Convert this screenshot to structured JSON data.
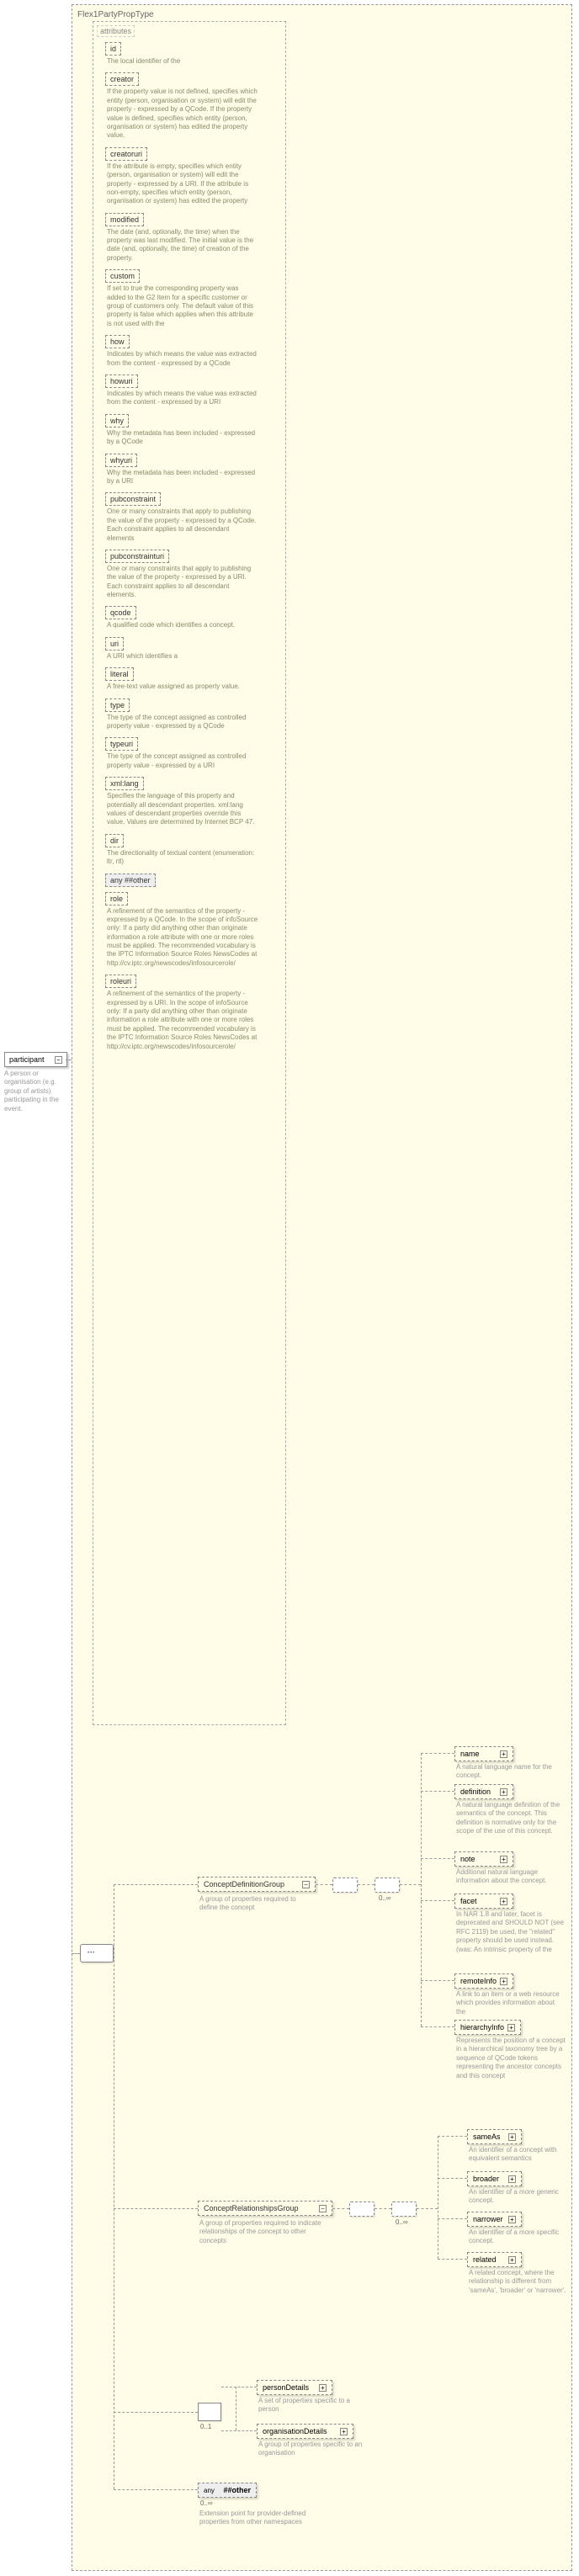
{
  "root": {
    "title": "Flex1PartyPropType"
  },
  "participant": {
    "label": "participant",
    "desc": "A person or organisation (e.g. group of artists) participating in the event."
  },
  "attrSection": {
    "title": "attributes"
  },
  "attrs": [
    {
      "name": "id",
      "desc": "The local identifier of the"
    },
    {
      "name": "creator",
      "desc": "If the property value is not defined, specifies which entity (person, organisation or system) will edit the property - expressed by a QCode. If the property value is defined, specifies which entity (person, organisation or system) has edited the property value."
    },
    {
      "name": "creatoruri",
      "desc": "If the attribute is empty, specifies which entity (person, organisation or system) will edit the property - expressed by a URI. If the attribute is non-empty, specifies which entity (person, organisation or system) has edited the property"
    },
    {
      "name": "modified",
      "desc": "The date (and, optionally, the time) when the property was last modified. The initial value is the date (and, optionally, the time) of creation of the property."
    },
    {
      "name": "custom",
      "desc": "If set to true the corresponding property was added to the G2 Item for a specific customer or group of customers only. The default value of this property is false which applies when this attribute is not used with the"
    },
    {
      "name": "how",
      "desc": "Indicates by which means the value was extracted from the content - expressed by a QCode"
    },
    {
      "name": "howuri",
      "desc": "Indicates by which means the value was extracted from the content - expressed by a URI"
    },
    {
      "name": "why",
      "desc": "Why the metadata has been included - expressed by a QCode"
    },
    {
      "name": "whyuri",
      "desc": "Why the metadata has been included - expressed by a URI"
    },
    {
      "name": "pubconstraint",
      "desc": "One or many constraints that apply to publishing the value of the property - expressed by a QCode. Each constraint applies to all descendant elements"
    },
    {
      "name": "pubconstrainturi",
      "desc": "One or many constraints that apply to publishing the value of the property - expressed by a URI. Each constraint applies to all descendant elements."
    },
    {
      "name": "qcode",
      "desc": "A qualified code which identifies a concept."
    },
    {
      "name": "uri",
      "desc": "A URI which identifies a"
    },
    {
      "name": "literal",
      "desc": "A free-text value assigned as property value."
    },
    {
      "name": "type",
      "desc": "The type of the concept assigned as controlled property value - expressed by a QCode"
    },
    {
      "name": "typeuri",
      "desc": "The type of the concept assigned as controlled property value - expressed by a URI"
    },
    {
      "name": "xml:lang",
      "desc": "Specifies the language of this property and potentially all descendant properties. xml:lang values of descendant properties override this value. Values are determined by Internet BCP 47."
    },
    {
      "name": "dir",
      "desc": "The directionality of textual content (enumeration: ltr, rtl)"
    },
    {
      "name": "any ##other",
      "desc": "",
      "nobox": false
    },
    {
      "name": "role",
      "desc": "A refinement of the semantics of the property - expressed by a QCode. In the scope of infoSource only: If a party did anything other than originate information a role attribute with one or more roles must be applied. The recommended vocabulary is the IPTC Information Source Roles NewsCodes at http://cv.iptc.org/newscodes/infosourcerole/"
    },
    {
      "name": "roleuri",
      "desc": "A refinement of the semantics of the property - expressed by a URI. In the scope of infoSource only: If a party did anything other than originate information a role attribute with one or more roles must be applied. The recommended vocabulary is the IPTC Information Source Roles NewsCodes at http://cv.iptc.org/newscodes/infosourcerole/"
    }
  ],
  "groups": {
    "cdg": {
      "label": "ConceptDefinitionGroup",
      "desc": "A group of properties required to define the concept"
    },
    "crg": {
      "label": "ConceptRelationshipsGroup",
      "desc": "A group of properties required to indicate relationships of the concept to other concepts"
    }
  },
  "cdgElems": [
    {
      "name": "name",
      "desc": "A natural language name for the concept."
    },
    {
      "name": "definition",
      "desc": "A natural language definition of the semantics of the concept. This definition is normative only for the scope of the use of this concept."
    },
    {
      "name": "note",
      "desc": "Additional natural language information about the concept."
    },
    {
      "name": "facet",
      "desc": "In NAR 1.8 and later, facet is deprecated and SHOULD NOT (see RFC 2119) be used, the \"related\" property should be used instead.(was: An intrinsic property of the"
    },
    {
      "name": "remoteInfo",
      "desc": "A link to an item or a web resource which provides information about the"
    },
    {
      "name": "hierarchyInfo",
      "desc": "Represents the position of a concept in a hierarchical taxonomy tree by a sequence of QCode tokens representing the ancestor concepts and this concept"
    }
  ],
  "crgElems": [
    {
      "name": "sameAs",
      "desc": "An identifier of a concept with equivalent semantics"
    },
    {
      "name": "broader",
      "desc": "An identifier of a more generic concept."
    },
    {
      "name": "narrower",
      "desc": "An identifier of a more specific concept."
    },
    {
      "name": "related",
      "desc": "A related concept, where the relationship is different from 'sameAs', 'broader' or 'narrower'."
    }
  ],
  "bottom": {
    "personDetails": {
      "label": "personDetails",
      "desc": "A set of properties specific to a person"
    },
    "orgDetails": {
      "label": "organisationDetails",
      "desc": "A group of properties specific to an organisation"
    },
    "anyOther": {
      "label": "##other",
      "desc": "Extension point for provider-defined properties from other namespaces"
    }
  }
}
